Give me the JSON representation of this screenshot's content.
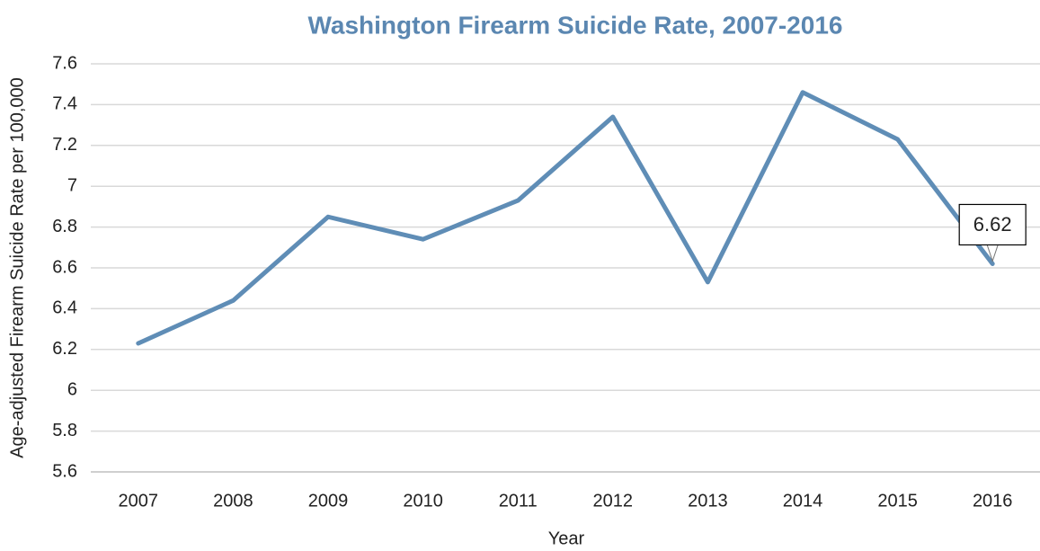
{
  "chart_data": {
    "type": "line",
    "title": "Washington Firearm Suicide Rate, 2007-2016",
    "x_label": "Year",
    "y_label": "Age-adjusted Firearm Suicide Rate per 100,000",
    "categories": [
      "2007",
      "2008",
      "2009",
      "2010",
      "2011",
      "2012",
      "2013",
      "2014",
      "2015",
      "2016"
    ],
    "series": [
      {
        "name": "Firearm Suicide Rate",
        "color": "#5f8db6",
        "values": [
          6.23,
          6.44,
          6.85,
          6.74,
          6.93,
          7.34,
          6.53,
          7.46,
          7.23,
          6.62
        ]
      }
    ],
    "ylim": [
      5.6,
      7.6
    ],
    "yticks": [
      5.6,
      5.8,
      6,
      6.2,
      6.4,
      6.6,
      6.8,
      7,
      7.2,
      7.4,
      7.6
    ],
    "grid": true
  }
}
